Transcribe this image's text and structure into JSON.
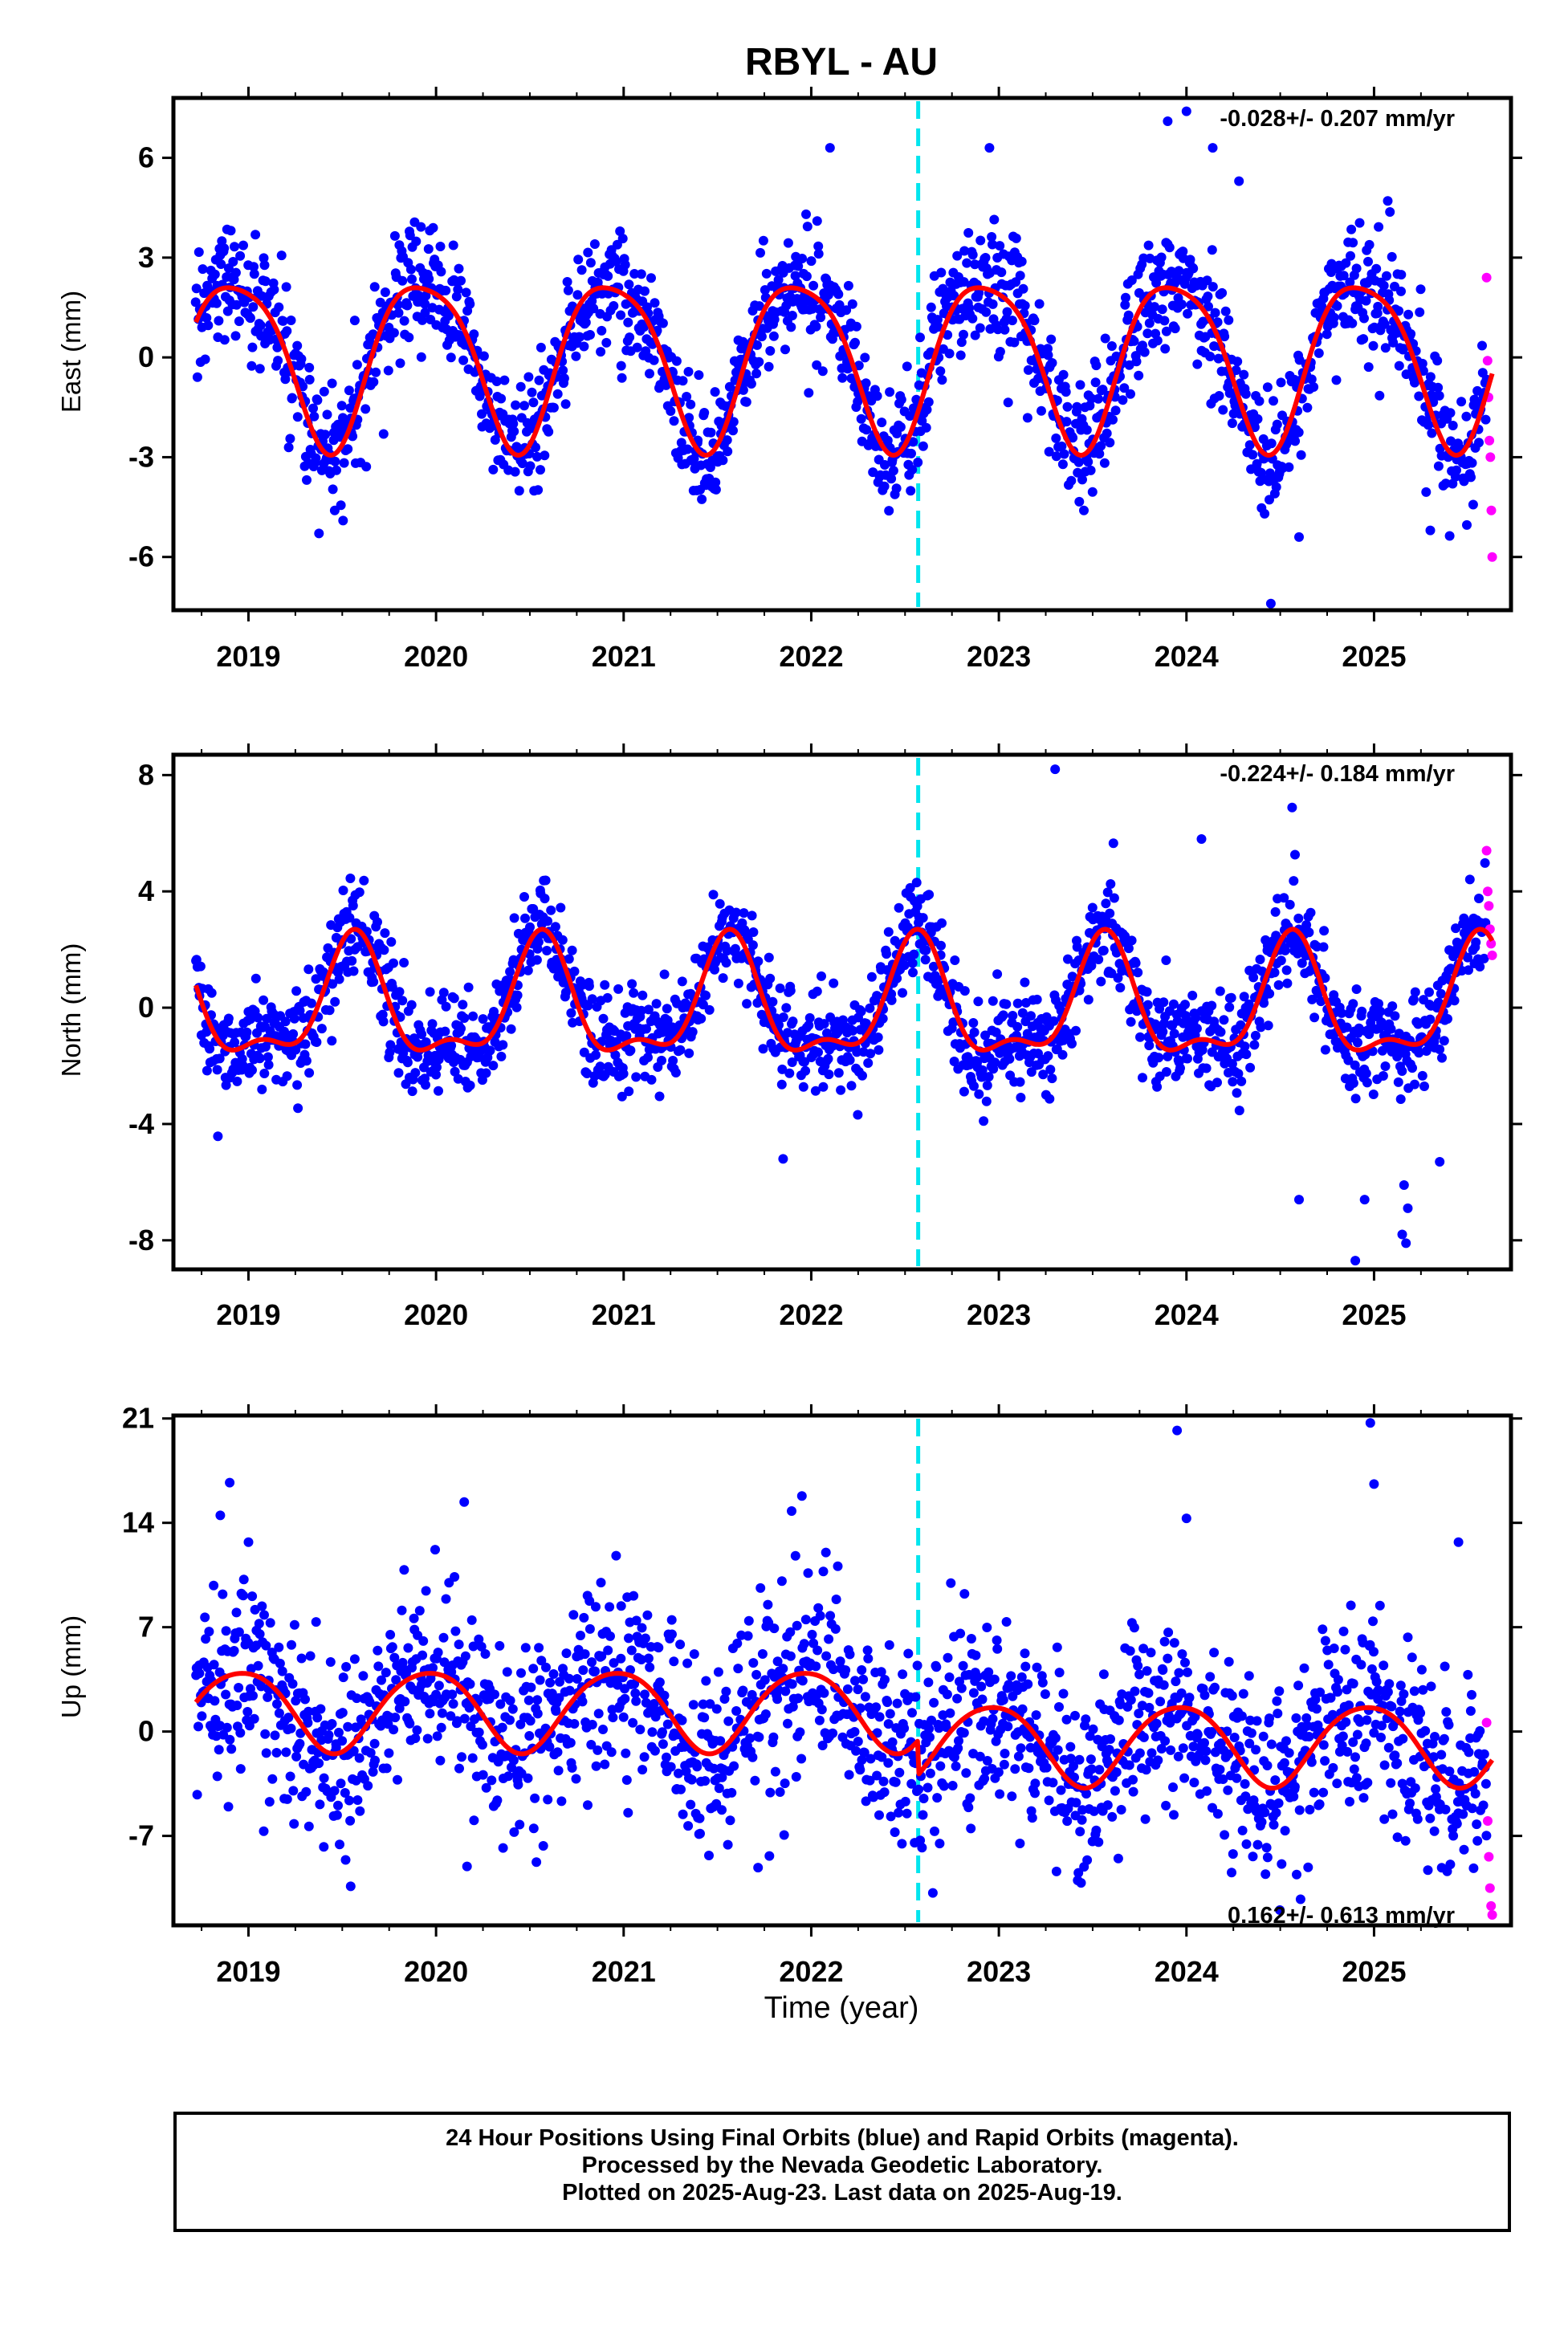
{
  "title": "RBYL - AU",
  "xlabel": "Time (year)",
  "x_ticks": [
    "2019",
    "2020",
    "2021",
    "2022",
    "2023",
    "2024",
    "2025"
  ],
  "colors": {
    "final_orbits": "#0000ff",
    "rapid_orbits": "#ff00ff",
    "model_fit": "#ff0000",
    "equipment_change": "#00e5ee",
    "frame": "#000000"
  },
  "caption": {
    "line1": "24 Hour Positions Using Final Orbits (blue) and Rapid Orbits (magenta).",
    "line2": "Processed by the Nevada Geodetic Laboratory.",
    "line3": "Plotted on 2025-Aug-23. Last data on 2025-Aug-19."
  },
  "chart_data": [
    {
      "type": "scatter",
      "component": "east",
      "ylabel": "East (mm)",
      "y_ticks": [
        "6",
        "3",
        "0",
        "-3",
        "-6"
      ],
      "ylim": [
        -7.6,
        7.8
      ],
      "xlim": [
        2018.6,
        2025.73
      ],
      "rate_label": "-0.028+/- 0.207 mm/yr",
      "rate_position": "top-right",
      "equipment_change_year": 2022.57,
      "data_start": 2018.72,
      "final_data_end": 2025.6,
      "rapid_data_start": 2025.6,
      "rapid_data_end": 2025.63,
      "model": {
        "annual_amplitude": 2.5,
        "annual_peak_year_fraction": 0.93,
        "semiannual_amplitude": 0.45,
        "semiannual_peak_year_fraction": 0.2,
        "noise_rms": 0.9
      },
      "rapid_values": [
        2.4,
        -0.1,
        -1.2,
        -2.5,
        -3.0,
        -4.6,
        -6.0
      ],
      "outliers": [
        [
          2023.9,
          7.1
        ],
        [
          2024.0,
          7.4
        ],
        [
          2024.14,
          6.3
        ],
        [
          2024.28,
          5.3
        ],
        [
          2024.45,
          -7.4
        ],
        [
          2024.6,
          -5.4
        ],
        [
          2025.3,
          -5.2
        ],
        [
          2022.1,
          6.3
        ],
        [
          2022.95,
          6.3
        ],
        [
          2019.46,
          -4.6
        ]
      ]
    },
    {
      "type": "scatter",
      "component": "north",
      "ylabel": "North (mm)",
      "y_ticks": [
        "8",
        "4",
        "0",
        "-4",
        "-8"
      ],
      "ylim": [
        -9.0,
        8.7
      ],
      "xlim": [
        2018.6,
        2025.73
      ],
      "rate_label": "-0.224+/- 0.184 mm/yr",
      "rate_position": "top-right",
      "equipment_change_year": 2022.57,
      "data_start": 2018.72,
      "final_data_end": 2025.6,
      "rapid_data_start": 2025.6,
      "rapid_data_end": 2025.63,
      "model": {
        "annual_amplitude": 1.9,
        "annual_peak_year_fraction": 0.56,
        "semiannual_amplitude": 0.8,
        "semiannual_peak_year_fraction": 0.07,
        "noise_rms": 0.85
      },
      "rapid_values": [
        5.4,
        4.0,
        3.5,
        2.7,
        2.2,
        1.8
      ],
      "outliers": [
        [
          2023.3,
          8.2
        ],
        [
          2024.08,
          5.8
        ],
        [
          2024.6,
          -6.6
        ],
        [
          2024.9,
          -8.7
        ],
        [
          2024.95,
          -6.6
        ],
        [
          2025.15,
          -7.8
        ],
        [
          2025.17,
          -8.1
        ],
        [
          2025.18,
          -6.9
        ],
        [
          2025.16,
          -6.1
        ],
        [
          2025.35,
          -5.3
        ],
        [
          2021.85,
          -5.2
        ]
      ]
    },
    {
      "type": "scatter",
      "component": "up",
      "ylabel": "Up (mm)",
      "y_ticks": [
        "21",
        "14",
        "7",
        "0",
        "-7"
      ],
      "ylim": [
        -13.0,
        21.2
      ],
      "xlim": [
        2018.6,
        2025.73
      ],
      "rate_label": "0.162+/- 0.613 mm/yr",
      "rate_position": "bottom-right",
      "equipment_change_year": 2022.57,
      "data_start": 2018.72,
      "final_data_end": 2025.6,
      "rapid_data_start": 2025.6,
      "rapid_data_end": 2025.63,
      "model": {
        "annual_amplitude": 2.7,
        "annual_peak_year_fraction": 0.96,
        "semiannual_amplitude": 0.3,
        "semiannual_peak_year_fraction": 0.2,
        "noise_rms": 3.2,
        "offset_before_change": 1.5,
        "offset_after_change": -0.8
      },
      "rapid_values": [
        0.6,
        -6.0,
        -8.4,
        -10.5,
        -11.7,
        -12.3
      ],
      "outliers": [
        [
          2018.9,
          16.7
        ],
        [
          2020.15,
          15.4
        ],
        [
          2021.95,
          15.8
        ],
        [
          2023.95,
          20.2
        ],
        [
          2024.0,
          14.3
        ],
        [
          2024.98,
          20.7
        ],
        [
          2025.0,
          16.6
        ],
        [
          2018.85,
          14.5
        ],
        [
          2019.0,
          12.7
        ],
        [
          2025.45,
          12.7
        ]
      ]
    }
  ]
}
